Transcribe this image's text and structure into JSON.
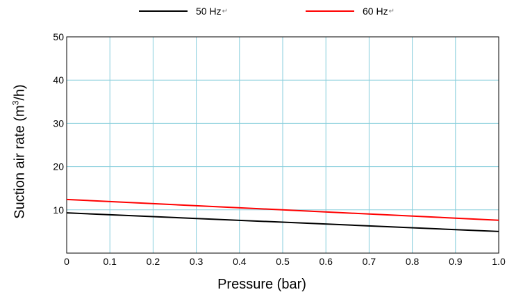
{
  "chart_data": {
    "type": "line",
    "xlabel": "Pressure (bar)",
    "ylabel_main": "Suction air rate (m",
    "ylabel_sup": "3",
    "ylabel_tail": "/h)",
    "xlim": [
      0,
      1.0
    ],
    "ylim": [
      0,
      50
    ],
    "x_ticks": [
      "0",
      "0.1",
      "0.2",
      "0.3",
      "0.4",
      "0.5",
      "0.6",
      "0.7",
      "0.8",
      "0.9",
      "1.0"
    ],
    "y_ticks": [
      "10",
      "20",
      "30",
      "40",
      "50"
    ],
    "grid": true,
    "grid_color": "#87cedc",
    "legend_position": "top",
    "legend_mark": "↵",
    "series": [
      {
        "name": "50 Hz",
        "color": "#000000",
        "x": [
          0.0,
          1.0
        ],
        "y": [
          9.3,
          5.0
        ]
      },
      {
        "name": "60 Hz",
        "color": "#ff0000",
        "x": [
          0.0,
          1.0
        ],
        "y": [
          12.4,
          7.6
        ]
      }
    ]
  }
}
